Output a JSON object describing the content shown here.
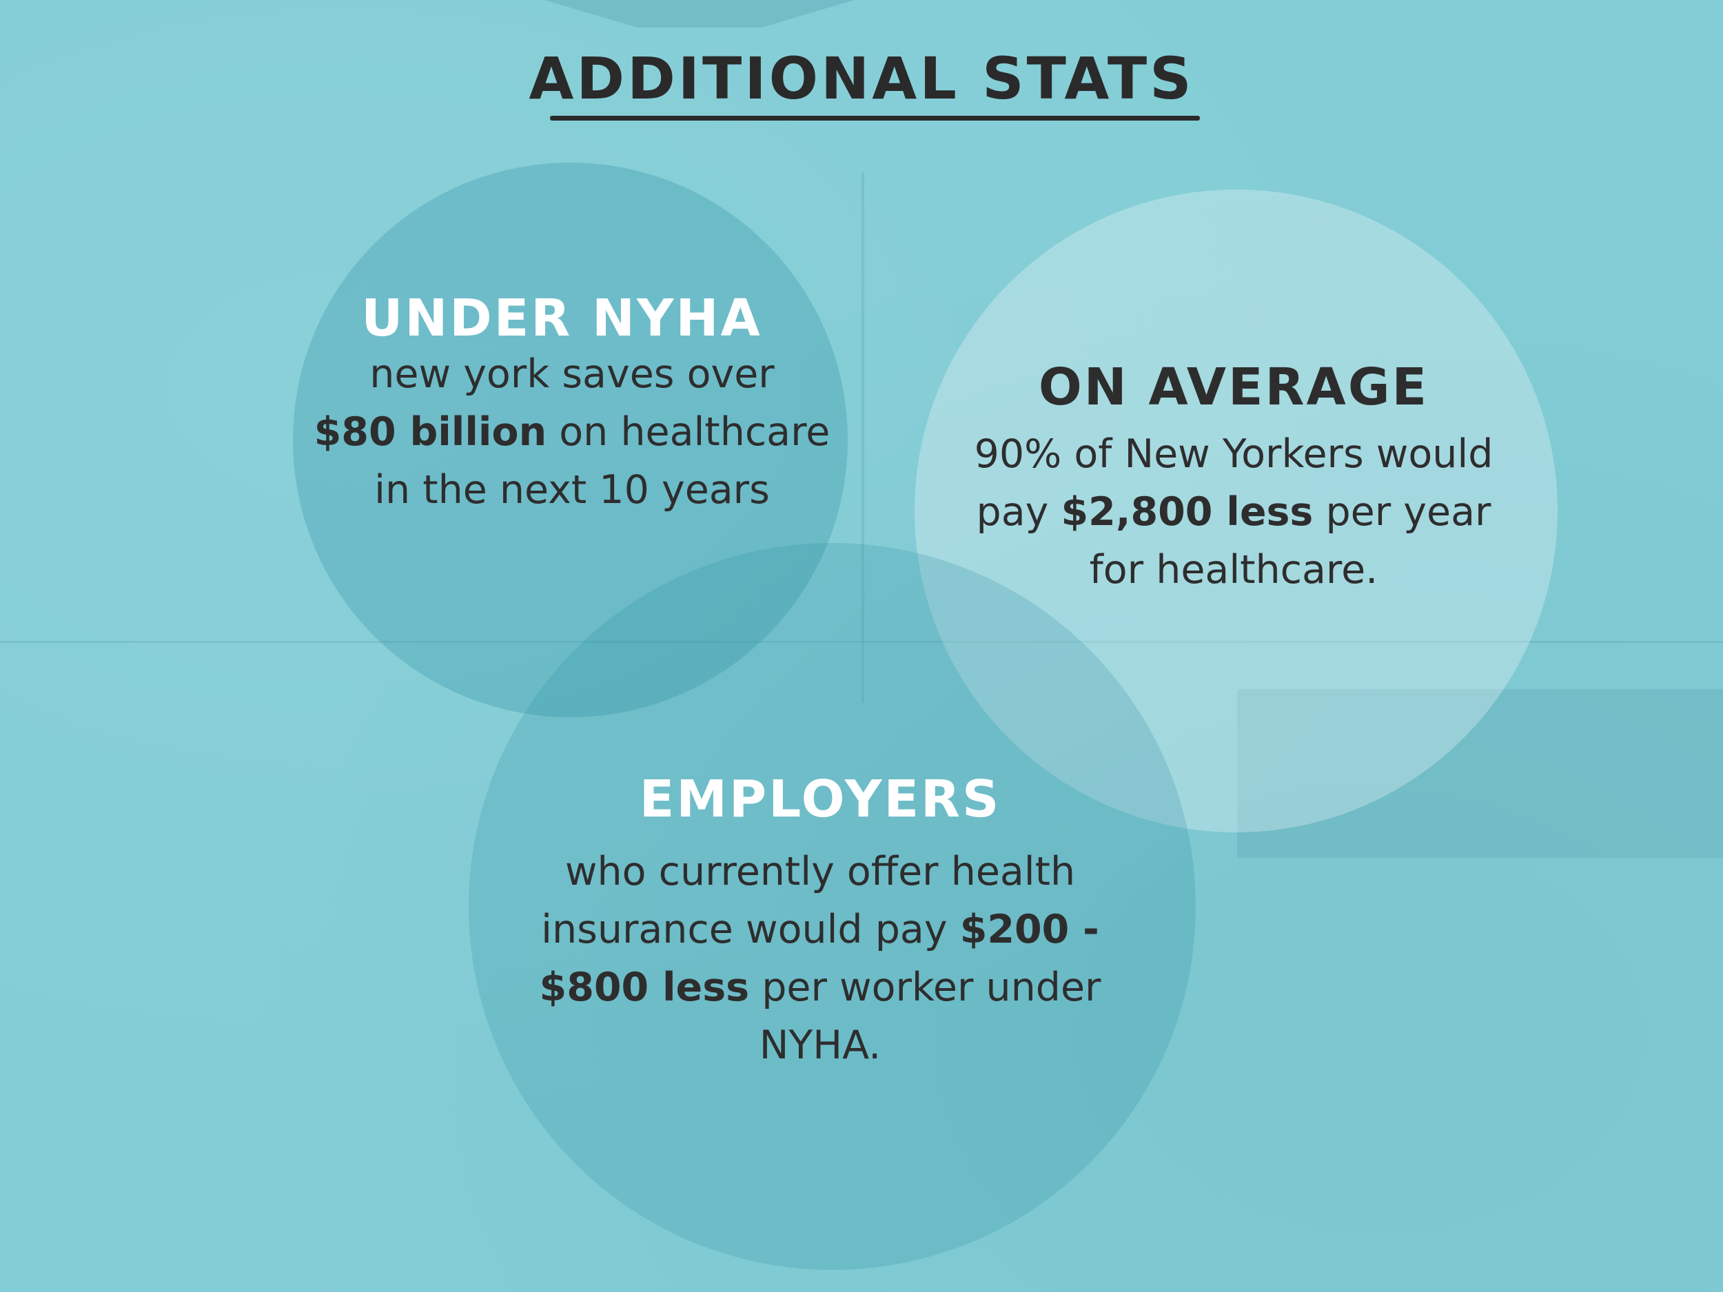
{
  "title": "ADDITIONAL STATS",
  "colors": {
    "background": "#83cdd6",
    "text_dark": "#2e2d2e",
    "heading_light": "#ffffff"
  },
  "stats": [
    {
      "heading": "UNDER NYHA",
      "lines": [
        {
          "pre": "new york saves over",
          "bold": "",
          "post": ""
        },
        {
          "pre": "",
          "bold": "$80 billion",
          "post": " on healthcare"
        },
        {
          "pre": "in the next 10 years",
          "bold": "",
          "post": ""
        }
      ]
    },
    {
      "heading": "ON AVERAGE",
      "lines": [
        {
          "pre": "90% of New Yorkers would",
          "bold": "",
          "post": ""
        },
        {
          "pre": "pay ",
          "bold": "$2,800 less",
          "post": " per year"
        },
        {
          "pre": "for healthcare.",
          "bold": "",
          "post": ""
        }
      ]
    },
    {
      "heading": "EMPLOYERS",
      "lines": [
        {
          "pre": "who currently offer health",
          "bold": "",
          "post": ""
        },
        {
          "pre": "insurance would pay ",
          "bold": "$200 -",
          "post": ""
        },
        {
          "pre": "",
          "bold": "$800 less",
          "post": " per worker under"
        },
        {
          "pre": "NYHA.",
          "bold": "",
          "post": ""
        }
      ]
    }
  ]
}
